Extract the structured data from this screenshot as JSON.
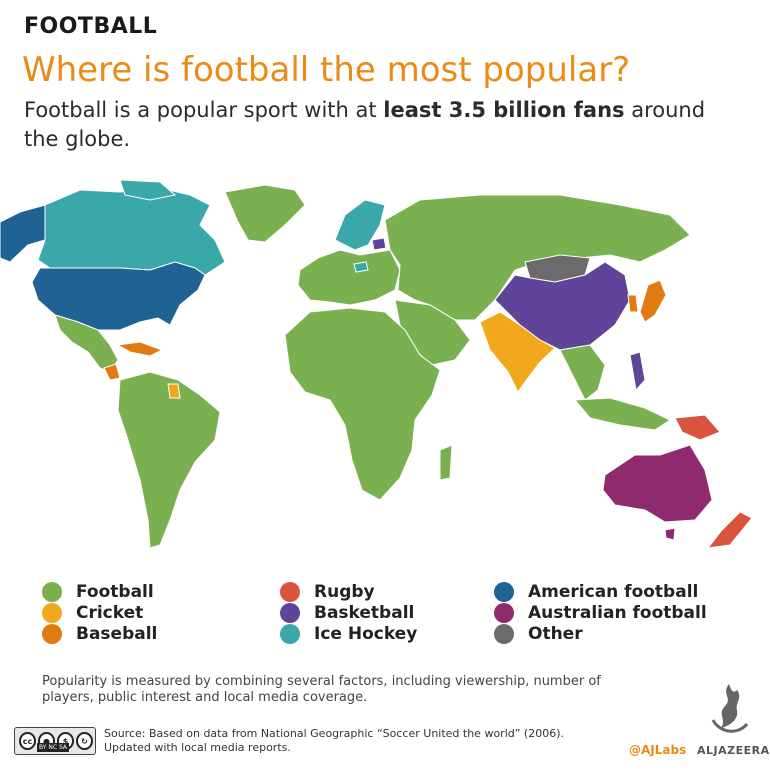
{
  "header": {
    "kicker": "FOOTBALL",
    "headline": "Where is football the most popular?",
    "subhead_pre": "Football is a popular sport with at ",
    "subhead_bold": "least 3.5 billion fans",
    "subhead_post": " around the globe."
  },
  "legend": [
    {
      "label": "Football",
      "color": "#7bb051"
    },
    {
      "label": "Cricket",
      "color": "#f2a81c"
    },
    {
      "label": "Baseball",
      "color": "#e27a12"
    },
    {
      "label": "Rugby",
      "color": "#d9533d"
    },
    {
      "label": "Basketball",
      "color": "#5f449a"
    },
    {
      "label": "Ice Hockey",
      "color": "#3aa7a8"
    },
    {
      "label": "American football",
      "color": "#1f6394"
    },
    {
      "label": "Australian football",
      "color": "#8e2a6d"
    },
    {
      "label": "Other",
      "color": "#6b6b6b"
    }
  ],
  "footer": {
    "note": "Popularity is measured by combining several factors, including viewership, number of players, public interest and local media coverage.",
    "source": "Source: Based on data from National Geographic “Soccer United the world” (2006). Updated with local media reports.",
    "license_icons": [
      "creative-commons-icon",
      "attribution-icon",
      "non-commercial-icon",
      "share-alike-icon"
    ],
    "license_tags": [
      "BY",
      "NC",
      "SA"
    ],
    "handle": "@AJLabs",
    "brand": "ALJAZEERA"
  },
  "map": {
    "regions": [
      {
        "name": "north-america-canada",
        "sport": "Ice Hockey"
      },
      {
        "name": "alaska",
        "sport": "American football"
      },
      {
        "name": "usa",
        "sport": "American football"
      },
      {
        "name": "greenland",
        "sport": "Football"
      },
      {
        "name": "mexico-central-america",
        "sport": "Football"
      },
      {
        "name": "caribbean",
        "sport": "Baseball"
      },
      {
        "name": "nicaragua",
        "sport": "Baseball"
      },
      {
        "name": "guyana",
        "sport": "Cricket"
      },
      {
        "name": "south-america",
        "sport": "Football"
      },
      {
        "name": "europe",
        "sport": "Football"
      },
      {
        "name": "scandinavia",
        "sport": "Ice Hockey"
      },
      {
        "name": "czechia",
        "sport": "Ice Hockey"
      },
      {
        "name": "lithuania",
        "sport": "Basketball"
      },
      {
        "name": "africa",
        "sport": "Football"
      },
      {
        "name": "russia-asia",
        "sport": "Football"
      },
      {
        "name": "mongolia",
        "sport": "Other"
      },
      {
        "name": "china",
        "sport": "Basketball"
      },
      {
        "name": "philippines",
        "sport": "Basketball"
      },
      {
        "name": "south-asia",
        "sport": "Cricket"
      },
      {
        "name": "japan",
        "sport": "Baseball"
      },
      {
        "name": "south-korea",
        "sport": "Baseball"
      },
      {
        "name": "southeast-asia",
        "sport": "Football"
      },
      {
        "name": "papua-new-guinea",
        "sport": "Rugby"
      },
      {
        "name": "australia",
        "sport": "Australian football"
      },
      {
        "name": "new-zealand",
        "sport": "Rugby"
      }
    ]
  }
}
